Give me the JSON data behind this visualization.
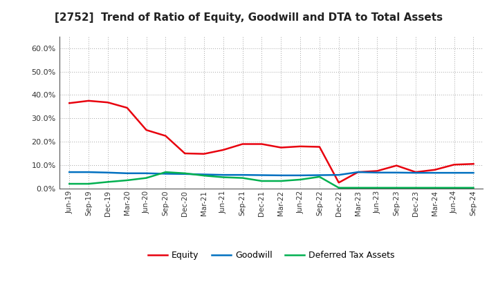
{
  "title": "[2752]  Trend of Ratio of Equity, Goodwill and DTA to Total Assets",
  "x_labels": [
    "Jun-19",
    "Sep-19",
    "Dec-19",
    "Mar-20",
    "Jun-20",
    "Sep-20",
    "Dec-20",
    "Mar-21",
    "Jun-21",
    "Sep-21",
    "Dec-21",
    "Mar-22",
    "Jun-22",
    "Sep-22",
    "Dec-22",
    "Mar-23",
    "Jun-23",
    "Sep-23",
    "Dec-23",
    "Mar-24",
    "Jun-24",
    "Sep-24"
  ],
  "equity": [
    36.5,
    37.5,
    36.8,
    34.5,
    25.0,
    22.5,
    15.0,
    14.8,
    16.5,
    19.0,
    19.0,
    17.5,
    18.0,
    17.8,
    2.5,
    7.0,
    7.5,
    9.8,
    7.0,
    8.0,
    10.2,
    10.5
  ],
  "goodwill": [
    7.0,
    7.0,
    6.8,
    6.5,
    6.5,
    6.3,
    6.2,
    6.0,
    5.8,
    5.8,
    5.7,
    5.6,
    5.6,
    5.7,
    5.8,
    7.0,
    6.8,
    6.8,
    6.7,
    6.7,
    6.7,
    6.7
  ],
  "dta": [
    2.0,
    2.0,
    2.8,
    3.5,
    4.5,
    7.0,
    6.5,
    5.5,
    4.8,
    4.5,
    3.2,
    3.2,
    3.8,
    5.0,
    0.3,
    0.3,
    0.3,
    0.3,
    0.3,
    0.3,
    0.3,
    0.3
  ],
  "equity_color": "#e8000d",
  "goodwill_color": "#0070c0",
  "dta_color": "#00b050",
  "background_color": "#ffffff",
  "grid_color": "#999999",
  "ylim": [
    0,
    65
  ],
  "yticks": [
    0.0,
    10.0,
    20.0,
    30.0,
    40.0,
    50.0,
    60.0
  ],
  "ytick_labels": [
    "0.0%",
    "10.0%",
    "20.0%",
    "30.0%",
    "40.0%",
    "50.0%",
    "60.0%"
  ]
}
